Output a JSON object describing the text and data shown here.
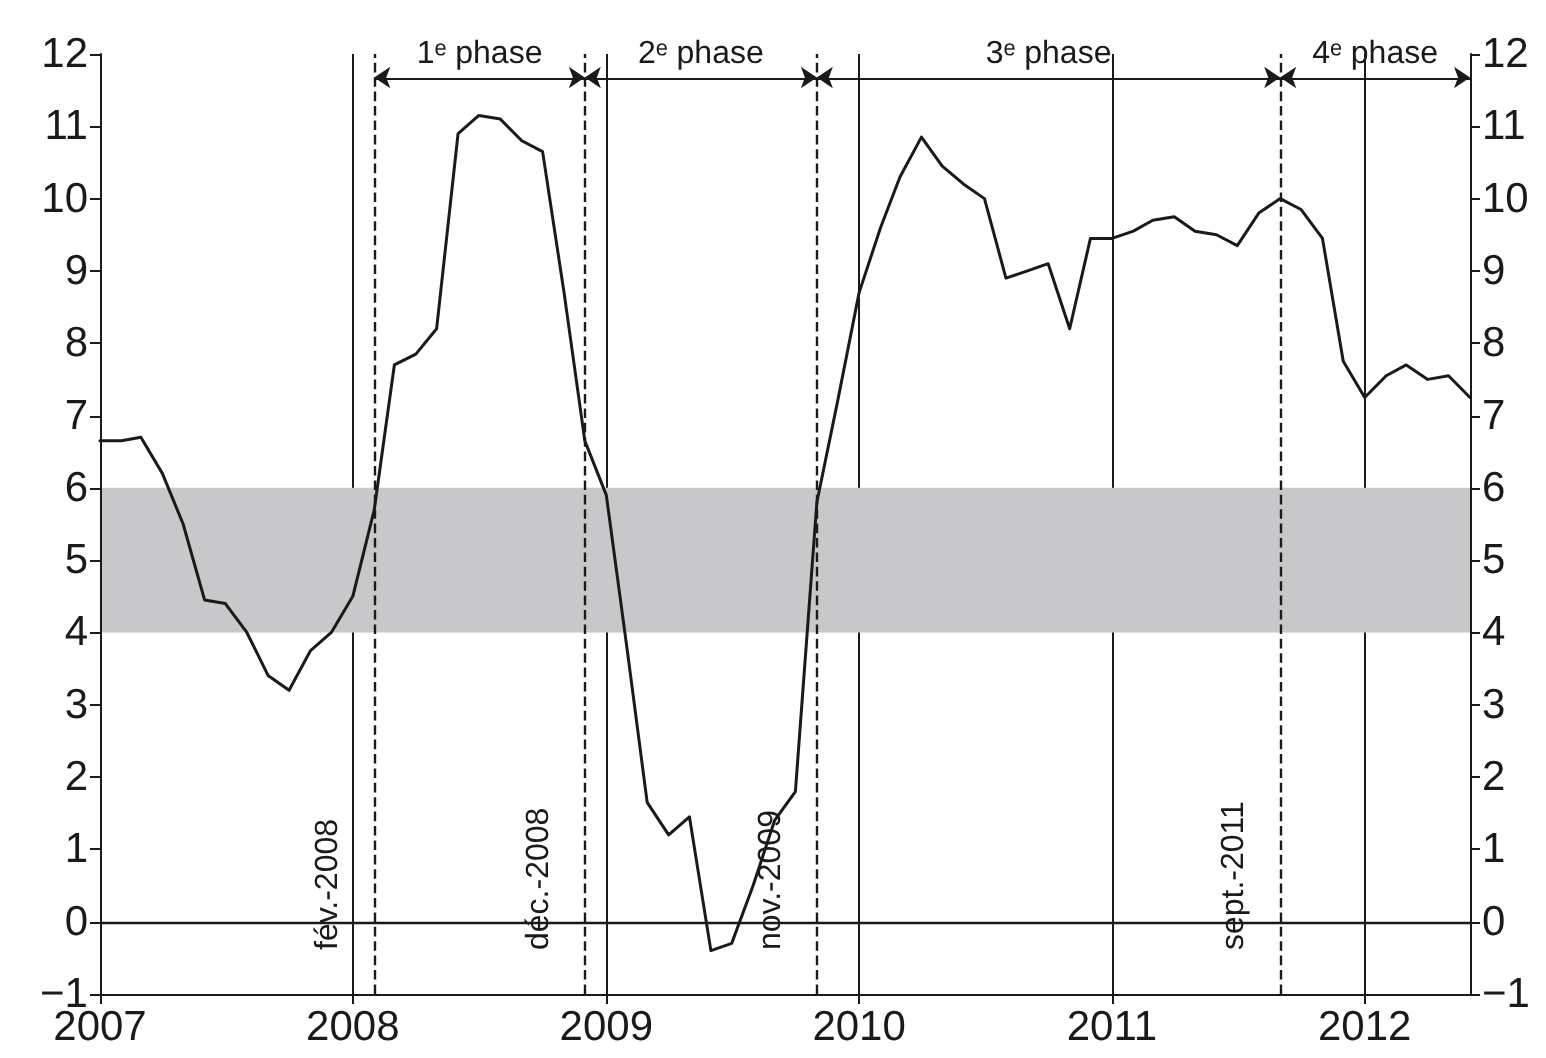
{
  "chart_data": {
    "type": "line",
    "x": [
      "2007-01",
      "2007-02",
      "2007-03",
      "2007-04",
      "2007-05",
      "2007-06",
      "2007-07",
      "2007-08",
      "2007-09",
      "2007-10",
      "2007-11",
      "2007-12",
      "2008-01",
      "2008-02",
      "2008-03",
      "2008-04",
      "2008-05",
      "2008-06",
      "2008-07",
      "2008-08",
      "2008-09",
      "2008-10",
      "2008-11",
      "2008-12",
      "2009-01",
      "2009-02",
      "2009-03",
      "2009-04",
      "2009-05",
      "2009-06",
      "2009-07",
      "2009-08",
      "2009-09",
      "2009-10",
      "2009-11",
      "2009-12",
      "2010-01",
      "2010-02",
      "2010-03",
      "2010-04",
      "2010-05",
      "2010-06",
      "2010-07",
      "2010-08",
      "2010-09",
      "2010-10",
      "2010-11",
      "2010-12",
      "2011-01",
      "2011-02",
      "2011-03",
      "2011-04",
      "2011-05",
      "2011-06",
      "2011-07",
      "2011-08",
      "2011-09",
      "2011-10",
      "2011-11",
      "2011-12",
      "2012-01",
      "2012-02",
      "2012-03",
      "2012-04",
      "2012-05",
      "2012-06"
    ],
    "series": [
      {
        "color": "#1a1a1a",
        "values": [
          6.65,
          6.65,
          6.7,
          6.2,
          5.5,
          4.45,
          4.4,
          4.0,
          3.4,
          3.2,
          3.75,
          4.0,
          4.5,
          5.7,
          7.7,
          7.85,
          8.2,
          10.9,
          11.15,
          11.1,
          10.8,
          10.65,
          8.7,
          6.65,
          5.9,
          3.7,
          1.65,
          1.2,
          1.45,
          -0.4,
          -0.3,
          0.5,
          1.4,
          1.8,
          5.8,
          7.2,
          8.7,
          9.6,
          10.3,
          10.85,
          10.45,
          10.2,
          10.0,
          8.9,
          9.0,
          9.1,
          8.2,
          9.45,
          9.45,
          9.55,
          9.7,
          9.75,
          9.55,
          9.5,
          9.35,
          9.8,
          10.0,
          9.85,
          9.45,
          7.75,
          7.25,
          7.55,
          7.7,
          7.5,
          7.55,
          7.25
        ]
      }
    ],
    "xlim": [
      "2007-01",
      "2012-06"
    ],
    "xticks": [
      "2007",
      "2008",
      "2009",
      "2010",
      "2011",
      "2012"
    ],
    "ylim": [
      -1,
      12
    ],
    "yticks": [
      {
        "value": -1,
        "label": "−1"
      },
      0,
      1,
      2,
      3,
      4,
      5,
      6,
      7,
      8,
      9,
      10,
      11,
      12
    ],
    "y2lim": [
      -1,
      12
    ],
    "y2ticks": [
      {
        "value": -1,
        "label": "−1"
      },
      0,
      1,
      2,
      3,
      4,
      5,
      6,
      7,
      8,
      9,
      10,
      11,
      12
    ],
    "grid": "x",
    "marker": "none",
    "line_style": "solid",
    "bands": [
      {
        "axis": "y",
        "from": 4,
        "to": 6,
        "color": "#c8c8ca"
      }
    ],
    "ref_lines": [
      {
        "axis": "y",
        "value": 0,
        "color": "#1a1a1a",
        "line_style": "solid"
      },
      {
        "axis": "x",
        "value": "2008-02",
        "label": "fév.-2008",
        "color": "#1a1a1a",
        "line_style": "dashed"
      },
      {
        "axis": "x",
        "value": "2008-12",
        "label": "déc.-2008",
        "color": "#1a1a1a",
        "line_style": "dashed"
      },
      {
        "axis": "x",
        "value": "2009-11",
        "label": "nov.-2009",
        "color": "#1a1a1a",
        "line_style": "dashed"
      },
      {
        "axis": "x",
        "value": "2011-09",
        "label": "sept.-2011",
        "color": "#1a1a1a",
        "line_style": "dashed"
      }
    ],
    "annotations": [
      "1ᵉ phase",
      "2ᵉ phase",
      "3ᵉ phase",
      "4ᵉ phase"
    ]
  }
}
